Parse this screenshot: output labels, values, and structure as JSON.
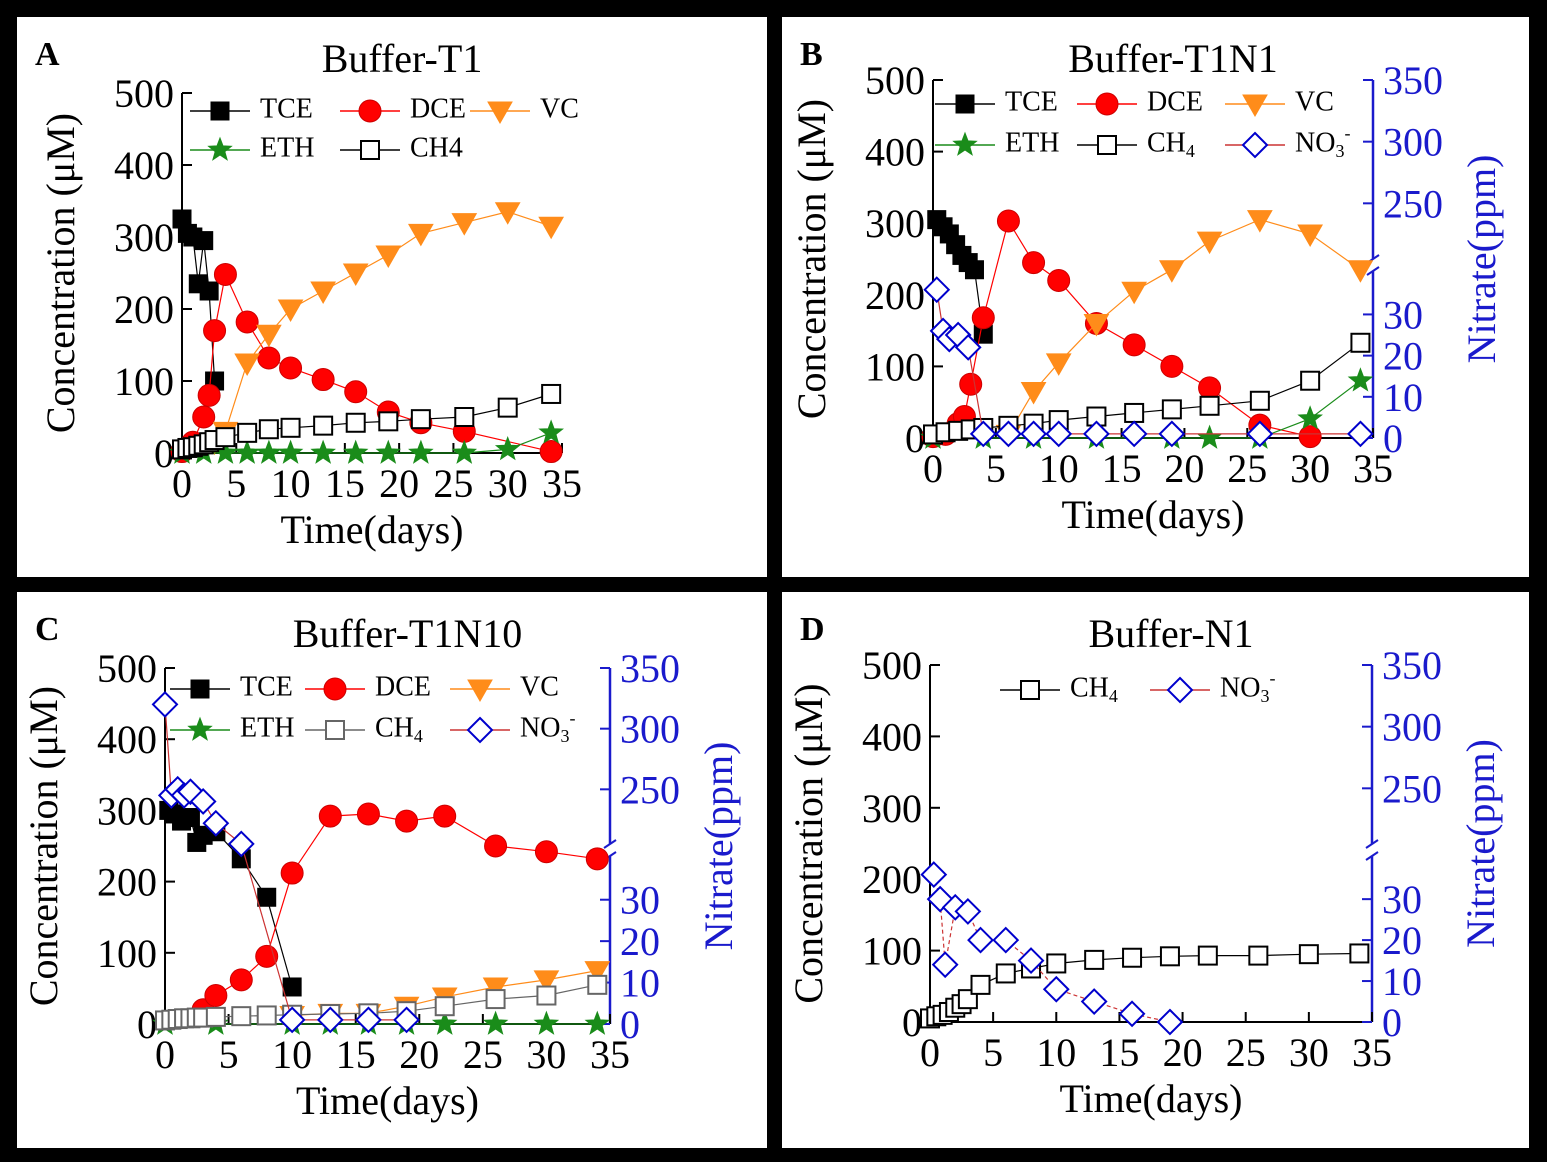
{
  "figure": {
    "background": "#000000",
    "panel_background": "#ffffff",
    "colors": {
      "TCE": "#000000",
      "DCE": "#ff0000",
      "VC": "#ff8c1a",
      "ETH": "#1a8c1a",
      "CH4": "#000000",
      "CH4_gray": "#666666",
      "NO3": "#0000cc",
      "axis_right": "#1a1acc"
    }
  },
  "chart_data": [
    {
      "panel": "A",
      "type": "line",
      "title": "Buffer-T1",
      "xlabel": "Time(days)",
      "ylabel": "Concentration (μM)",
      "xlim": [
        0,
        35
      ],
      "ylim": [
        0,
        500
      ],
      "xticks": [
        "0",
        "5",
        "10",
        "15",
        "20",
        "25",
        "30",
        "35"
      ],
      "yticks": [
        "0",
        "100",
        "200",
        "300",
        "400",
        "500"
      ],
      "legend": [
        {
          "key": "TCE",
          "label": "TCE"
        },
        {
          "key": "DCE",
          "label": "DCE"
        },
        {
          "key": "VC",
          "label": "VC"
        },
        {
          "key": "ETH",
          "label": "ETH"
        },
        {
          "key": "CH4",
          "label": "CH4"
        }
      ],
      "series": [
        {
          "name": "TCE",
          "marker": "square",
          "x": [
            0,
            0.5,
            1,
            1.5,
            2,
            2.5,
            3
          ],
          "y": [
            325,
            305,
            300,
            235,
            295,
            225,
            100
          ]
        },
        {
          "name": "DCE",
          "marker": "circle",
          "x": [
            0,
            1,
            2,
            2.5,
            3,
            4,
            6,
            8,
            10,
            13,
            16,
            19,
            22,
            26,
            34
          ],
          "y": [
            2,
            15,
            50,
            80,
            170,
            248,
            182,
            132,
            118,
            102,
            85,
            57,
            42,
            30,
            2
          ]
        },
        {
          "name": "VC",
          "marker": "triangle-down",
          "x": [
            3,
            4,
            6,
            8,
            10,
            13,
            16,
            19,
            22,
            26,
            30,
            34
          ],
          "y": [
            15,
            30,
            125,
            165,
            200,
            225,
            250,
            275,
            305,
            320,
            335,
            315
          ]
        },
        {
          "name": "ETH",
          "marker": "star",
          "x": [
            0,
            2,
            4,
            6,
            8,
            10,
            13,
            16,
            19,
            22,
            26,
            30,
            34
          ],
          "y": [
            0,
            0,
            0,
            0,
            0,
            0,
            0,
            0,
            0,
            0,
            0,
            5,
            28
          ]
        },
        {
          "name": "CH4",
          "marker": "square-open",
          "x": [
            0,
            0.5,
            1,
            1.5,
            2,
            2.5,
            3,
            4,
            6,
            8,
            10,
            13,
            16,
            19,
            22,
            26,
            30,
            34
          ],
          "y": [
            5,
            7,
            8,
            10,
            12,
            15,
            18,
            22,
            28,
            33,
            35,
            38,
            42,
            44,
            47,
            50,
            63,
            82
          ]
        }
      ]
    },
    {
      "panel": "B",
      "type": "line",
      "title": "Buffer-T1N1",
      "xlabel": "Time(days)",
      "ylabel": "Concentration (μM)",
      "y2label": "Nitrate(ppm)",
      "xlim": [
        0,
        35
      ],
      "ylim": [
        0,
        500
      ],
      "xticks": [
        "0",
        "5",
        "10",
        "15",
        "20",
        "25",
        "30",
        "35"
      ],
      "yticks": [
        "0",
        "100",
        "200",
        "300",
        "400",
        "500"
      ],
      "y2_lower_ticks": [
        "0",
        "10",
        "20",
        "30"
      ],
      "y2_upper_ticks": [
        "250",
        "300",
        "350"
      ],
      "legend": [
        {
          "key": "TCE",
          "label": "TCE"
        },
        {
          "key": "DCE",
          "label": "DCE"
        },
        {
          "key": "VC",
          "label": "VC"
        },
        {
          "key": "ETH",
          "label": "ETH"
        },
        {
          "key": "CH4",
          "label": "CH",
          "sub": "4"
        },
        {
          "key": "NO3",
          "label": "NO",
          "sub": "3",
          "sup": "-"
        }
      ],
      "series": [
        {
          "name": "TCE",
          "marker": "square",
          "x": [
            0.3,
            0.8,
            1.3,
            1.8,
            2.3,
            2.8,
            3.3,
            4
          ],
          "y": [
            305,
            295,
            285,
            270,
            255,
            245,
            235,
            145
          ]
        },
        {
          "name": "DCE",
          "marker": "circle",
          "x": [
            0,
            1,
            2,
            2.5,
            3,
            4,
            6,
            8,
            10,
            13,
            16,
            19,
            22,
            26,
            30
          ],
          "y": [
            2,
            5,
            20,
            30,
            75,
            168,
            303,
            245,
            220,
            160,
            130,
            100,
            70,
            18,
            2
          ]
        },
        {
          "name": "VC",
          "marker": "triangle-down",
          "x": [
            6,
            8,
            10,
            13,
            16,
            19,
            22,
            26,
            30,
            34
          ],
          "y": [
            5,
            65,
            105,
            160,
            205,
            235,
            275,
            305,
            285,
            235
          ]
        },
        {
          "name": "ETH",
          "marker": "star",
          "x": [
            0,
            4,
            8,
            13,
            19,
            22,
            26,
            30,
            34
          ],
          "y": [
            0,
            0,
            0,
            0,
            0,
            0,
            0,
            27,
            80
          ]
        },
        {
          "name": "CH4",
          "marker": "square-open",
          "x": [
            0,
            1,
            2,
            3,
            4,
            6,
            8,
            10,
            13,
            16,
            19,
            22,
            26,
            30,
            34
          ],
          "y": [
            5,
            8,
            10,
            12,
            14,
            17,
            20,
            25,
            30,
            35,
            40,
            45,
            52,
            80,
            133
          ]
        },
        {
          "name": "NO3",
          "marker": "diamond-open",
          "axis": "right",
          "x": [
            0.3,
            0.8,
            1.3,
            2,
            2.8,
            4,
            6,
            8,
            10,
            13,
            16,
            19,
            26,
            34
          ],
          "y": [
            36,
            26,
            24,
            25,
            22,
            1,
            1,
            1,
            1,
            1,
            1,
            1,
            1,
            1
          ]
        }
      ]
    },
    {
      "panel": "C",
      "type": "line",
      "title": "Buffer-T1N10",
      "xlabel": "Time(days)",
      "ylabel": "Concentration (μM)",
      "y2label": "Nitrate(ppm)",
      "xlim": [
        0,
        35
      ],
      "ylim": [
        0,
        500
      ],
      "xticks": [
        "0",
        "5",
        "10",
        "15",
        "20",
        "25",
        "30",
        "35"
      ],
      "yticks": [
        "0",
        "100",
        "200",
        "300",
        "400",
        "500"
      ],
      "y2_lower_ticks": [
        "0",
        "10",
        "20",
        "30"
      ],
      "y2_upper_ticks": [
        "250",
        "300",
        "350"
      ],
      "legend": [
        {
          "key": "TCE",
          "label": "TCE"
        },
        {
          "key": "DCE",
          "label": "DCE"
        },
        {
          "key": "VC",
          "label": "VC"
        },
        {
          "key": "ETH",
          "label": "ETH"
        },
        {
          "key": "CH4",
          "label": "CH",
          "sub": "4"
        },
        {
          "key": "NO3",
          "label": "NO",
          "sub": "3",
          "sup": "-"
        }
      ],
      "series": [
        {
          "name": "TCE",
          "marker": "square",
          "x": [
            0.3,
            0.8,
            1.3,
            2,
            2.5,
            3,
            4,
            6,
            8,
            10
          ],
          "y": [
            300,
            295,
            285,
            290,
            255,
            265,
            270,
            232,
            178,
            52
          ]
        },
        {
          "name": "DCE",
          "marker": "circle",
          "x": [
            3,
            4,
            6,
            8,
            10,
            13,
            16,
            19,
            22,
            26,
            30,
            34
          ],
          "y": [
            20,
            40,
            62,
            95,
            212,
            292,
            295,
            285,
            292,
            250,
            242,
            232
          ]
        },
        {
          "name": "VC",
          "marker": "triangle-down",
          "x": [
            10,
            13,
            16,
            19,
            22,
            26,
            30,
            34
          ],
          "y": [
            12,
            15,
            15,
            25,
            38,
            52,
            62,
            75
          ]
        },
        {
          "name": "ETH",
          "marker": "star",
          "x": [
            0,
            4,
            10,
            13,
            16,
            19,
            22,
            26,
            30,
            34
          ],
          "y": [
            0,
            0,
            0,
            0,
            0,
            0,
            0,
            0,
            0,
            0
          ]
        },
        {
          "name": "CH4",
          "marker": "square-open-gray",
          "x": [
            0,
            0.5,
            1,
            1.5,
            2,
            2.5,
            3,
            4,
            6,
            8,
            10,
            13,
            16,
            19,
            22,
            26,
            30,
            34
          ],
          "y": [
            5,
            6,
            7,
            8,
            8,
            9,
            9,
            10,
            11,
            12,
            13,
            14,
            15,
            18,
            25,
            35,
            40,
            55
          ]
        },
        {
          "name": "NO3",
          "marker": "diamond-open",
          "axis": "right",
          "x": [
            0,
            0.5,
            1,
            1.5,
            2,
            3,
            4,
            6,
            10,
            13,
            16,
            19
          ],
          "y": [
            320,
            245,
            250,
            245,
            248,
            240,
            222,
            205,
            1,
            1,
            1,
            1
          ]
        }
      ]
    },
    {
      "panel": "D",
      "type": "line",
      "title": "Buffer-N1",
      "xlabel": "Time(days)",
      "ylabel": "Concentration (μM)",
      "y2label": "Nitrate(ppm)",
      "xlim": [
        0,
        35
      ],
      "ylim": [
        0,
        500
      ],
      "xticks": [
        "0",
        "5",
        "10",
        "15",
        "20",
        "25",
        "30",
        "35"
      ],
      "yticks": [
        "0",
        "100",
        "200",
        "300",
        "400",
        "500"
      ],
      "y2_lower_ticks": [
        "0",
        "10",
        "20",
        "30"
      ],
      "y2_upper_ticks": [
        "250",
        "300",
        "350"
      ],
      "legend": [
        {
          "key": "CH4",
          "label": "CH",
          "sub": "4"
        },
        {
          "key": "NO3",
          "label": "NO",
          "sub": "3",
          "sup": "-"
        }
      ],
      "series": [
        {
          "name": "CH4",
          "marker": "square-open",
          "x": [
            0,
            0.5,
            1,
            1.5,
            2,
            2.5,
            3,
            4,
            6,
            8,
            10,
            13,
            16,
            19,
            22,
            26,
            30,
            34
          ],
          "y": [
            5,
            8,
            10,
            14,
            20,
            25,
            32,
            52,
            68,
            75,
            82,
            87,
            90,
            92,
            93,
            93,
            95,
            96
          ]
        },
        {
          "name": "NO3",
          "marker": "diamond-open",
          "axis": "right",
          "x": [
            0.3,
            0.8,
            1.2,
            2,
            3,
            4,
            6,
            8,
            10,
            13,
            16,
            19
          ],
          "y": [
            36,
            30,
            14,
            28,
            27,
            20,
            20,
            15,
            8,
            5,
            2,
            0
          ]
        }
      ]
    }
  ]
}
